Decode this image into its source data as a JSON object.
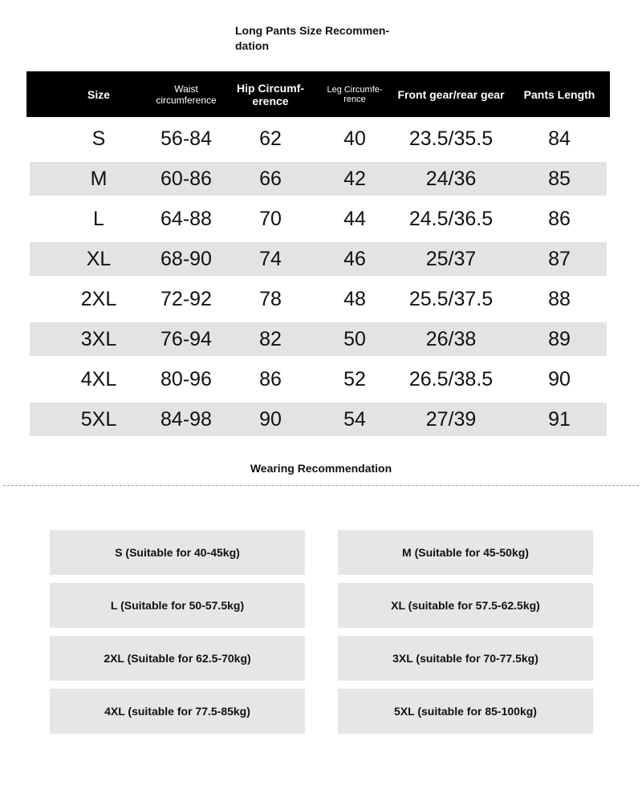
{
  "title": "Long Pants Size Recommen-dation",
  "table": {
    "headers": [
      "Size",
      "Waist circumference",
      "Hip Circumf-erence",
      "Leg Circumfe-rence",
      "Front gear/rear gear",
      "Pants Length"
    ],
    "rows": [
      [
        "S",
        "56-84",
        "62",
        "40",
        "23.5/35.5",
        "84"
      ],
      [
        "M",
        "60-86",
        "66",
        "42",
        "24/36",
        "85"
      ],
      [
        "L",
        "64-88",
        "70",
        "44",
        "24.5/36.5",
        "86"
      ],
      [
        "XL",
        "68-90",
        "74",
        "46",
        "25/37",
        "87"
      ],
      [
        "2XL",
        "72-92",
        "78",
        "48",
        "25.5/37.5",
        "88"
      ],
      [
        "3XL",
        "76-94",
        "82",
        "50",
        "26/38",
        "89"
      ],
      [
        "4XL",
        "80-96",
        "86",
        "52",
        "26.5/38.5",
        "90"
      ],
      [
        "5XL",
        "84-98",
        "90",
        "54",
        "27/39",
        "91"
      ]
    ]
  },
  "wearing": {
    "title": "Wearing Recommendation",
    "items": [
      "S (Suitable for 40-45kg)",
      "M (Suitable for 45-50kg)",
      "L (Suitable for 50-57.5kg)",
      "XL (suitable for 57.5-62.5kg)",
      "2XL (Suitable for 62.5-70kg)",
      "3XL (suitable for 70-77.5kg)",
      "4XL (suitable for 77.5-85kg)",
      "5XL (suitable for 85-100kg)"
    ]
  },
  "colors": {
    "header_bg": "#000000",
    "alt_row": "#e3e3e3",
    "card_bg": "#e6e6e6"
  }
}
